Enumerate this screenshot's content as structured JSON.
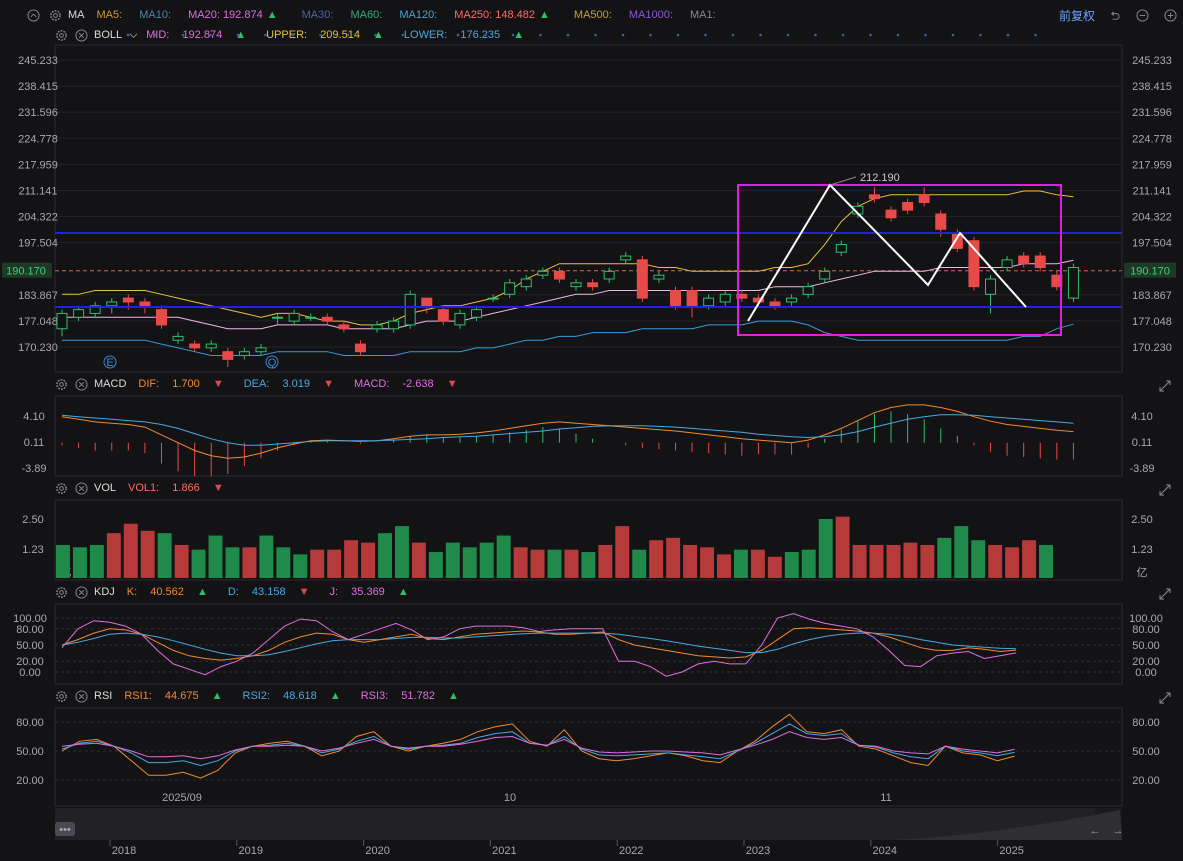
{
  "ma": {
    "name": "MA",
    "items": [
      {
        "label": "MA5:",
        "value": "",
        "color": "#c9963c"
      },
      {
        "label": "MA10:",
        "value": "",
        "color": "#4b86a8"
      },
      {
        "label": "MA20:",
        "value": "192.874",
        "color": "#e06ee0",
        "arrow": "▲"
      },
      {
        "label": "MA30:",
        "value": "",
        "color": "#4a63a8"
      },
      {
        "label": "MA60:",
        "value": "",
        "color": "#3aa87a"
      },
      {
        "label": "MA120:",
        "value": "",
        "color": "#4aa3c8"
      },
      {
        "label": "MA250:",
        "value": "148.482",
        "color": "#ff6a6a",
        "arrow": "▲"
      },
      {
        "label": "MA500:",
        "value": "",
        "color": "#c8a030"
      },
      {
        "label": "MA1000:",
        "value": "",
        "color": "#8a5ad0"
      },
      {
        "label": "MA1:",
        "value": "",
        "color": "#888888"
      }
    ],
    "adjust": "前复权"
  },
  "boll": {
    "name": "BOLL",
    "mid_label": "MID:",
    "mid": "192.874",
    "upper_label": "UPPER:",
    "upper": "209.514",
    "lower_label": "LOWER:",
    "lower": "176.235"
  },
  "macd": {
    "name": "MACD",
    "dif_label": "DIF:",
    "dif": "1.700",
    "dea_label": "DEA:",
    "dea": "3.019",
    "macd_label": "MACD:",
    "macd": "-2.638",
    "ticks": [
      "4.10",
      "0.11",
      "-3.89"
    ]
  },
  "vol": {
    "name": "VOL",
    "vol1_label": "VOL1:",
    "vol1": "1.866",
    "ticks": [
      "2.50",
      "1.23",
      "亿"
    ]
  },
  "kdj": {
    "name": "KDJ",
    "k_label": "K:",
    "k": "40.562",
    "d_label": "D:",
    "d": "43.158",
    "j_label": "J:",
    "j": "35.369",
    "ticks": [
      "100.00",
      "80.00",
      "50.00",
      "20.00",
      "0.00"
    ]
  },
  "rsi": {
    "name": "RSI",
    "rsi1_label": "RSI1:",
    "rsi1": "44.675",
    "rsi2_label": "RSI2:",
    "rsi2": "48.618",
    "rsi3_label": "RSI3:",
    "rsi3": "51.782",
    "ticks": [
      "80.00",
      "50.00",
      "20.00"
    ]
  },
  "price_ticks": [
    "245.233",
    "238.415",
    "231.596",
    "224.778",
    "217.959",
    "211.141",
    "204.322",
    "197.504",
    "190.170",
    "183.867",
    "177.048",
    "170.230"
  ],
  "last_price": "190.170",
  "peak_label": "212.190",
  "date_labels": [
    "2025/09",
    "10",
    "11"
  ],
  "year_labels": [
    "2018",
    "2019",
    "2020",
    "2021",
    "2022",
    "2023",
    "2024",
    "2025"
  ],
  "markers": [
    "E",
    "Q"
  ],
  "chart_data": {
    "type": "candlestick",
    "candles": [
      [
        175,
        179,
        173,
        180
      ],
      [
        178,
        180,
        177,
        181
      ],
      [
        179,
        181,
        178,
        182
      ],
      [
        181,
        182,
        179,
        183
      ],
      [
        183,
        182,
        180,
        184
      ],
      [
        182,
        181,
        179,
        183
      ],
      [
        180,
        176,
        175,
        181
      ],
      [
        172,
        173,
        171,
        174
      ],
      [
        171,
        170,
        169,
        172
      ],
      [
        170,
        171,
        169,
        172
      ],
      [
        169,
        167,
        165,
        170
      ],
      [
        168,
        169,
        167,
        170
      ],
      [
        169,
        170,
        168,
        171
      ],
      [
        178,
        178,
        176,
        179
      ],
      [
        177,
        179,
        176,
        180
      ],
      [
        178,
        178,
        177,
        179
      ],
      [
        178,
        177,
        176,
        179
      ],
      [
        176,
        175,
        174,
        177
      ],
      [
        171,
        169,
        168,
        172
      ],
      [
        175,
        176,
        174,
        177
      ],
      [
        175,
        177,
        174,
        178
      ],
      [
        176,
        184,
        175,
        185
      ],
      [
        183,
        181,
        179,
        183
      ],
      [
        180,
        177,
        176,
        181
      ],
      [
        176,
        179,
        175,
        180
      ],
      [
        178,
        180,
        177,
        181
      ],
      [
        183,
        183,
        182,
        184
      ],
      [
        184,
        187,
        183,
        188
      ],
      [
        186,
        188,
        185,
        189
      ],
      [
        189,
        190,
        188,
        191
      ],
      [
        190,
        188,
        187,
        191
      ],
      [
        186,
        187,
        185,
        188
      ],
      [
        187,
        186,
        185,
        188
      ],
      [
        188,
        190,
        187,
        191
      ],
      [
        193,
        194,
        192,
        195
      ],
      [
        193,
        183,
        182,
        194
      ],
      [
        188,
        189,
        187,
        190
      ],
      [
        185,
        181,
        180,
        186
      ],
      [
        185,
        181,
        178,
        186
      ],
      [
        181,
        183,
        180,
        184
      ],
      [
        182,
        184,
        181,
        185
      ],
      [
        184,
        183,
        182,
        185
      ],
      [
        183,
        182,
        181,
        184
      ],
      [
        182,
        181,
        180,
        183
      ],
      [
        182,
        183,
        181,
        184
      ],
      [
        184,
        186,
        183,
        187
      ],
      [
        188,
        190,
        187,
        191
      ],
      [
        195,
        197,
        194,
        198
      ],
      [
        205,
        207,
        204,
        208
      ],
      [
        210,
        209,
        208,
        212
      ],
      [
        206,
        204,
        203,
        207
      ],
      [
        208,
        206,
        205,
        209
      ],
      [
        210,
        208,
        207,
        212
      ],
      [
        205,
        201,
        199,
        206
      ],
      [
        200,
        196,
        195,
        201
      ],
      [
        198,
        186,
        185,
        199
      ],
      [
        184,
        188,
        179,
        189
      ],
      [
        191,
        193,
        190,
        194
      ],
      [
        194,
        192,
        191,
        195
      ],
      [
        194,
        191,
        190,
        195
      ],
      [
        189,
        186,
        185,
        190
      ],
      [
        183,
        191,
        182,
        192
      ]
    ],
    "boll_upper": [
      184,
      184,
      185,
      185,
      185,
      185,
      184,
      183,
      182,
      181,
      180,
      179,
      178,
      179,
      179,
      178,
      177,
      177,
      176,
      176,
      177,
      179,
      180,
      181,
      181,
      182,
      183,
      185,
      188,
      190,
      192,
      192,
      192,
      192,
      192,
      192,
      191,
      191,
      190,
      190,
      190,
      190,
      190,
      191,
      191,
      192,
      197,
      203,
      207,
      209,
      210,
      210,
      210,
      210,
      210,
      210,
      210,
      210,
      211,
      211,
      210,
      209.5
    ],
    "boll_mid": [
      178,
      178,
      178,
      178,
      178,
      178,
      178,
      178,
      177,
      176,
      175,
      175,
      175,
      176,
      176,
      176,
      176,
      175,
      175,
      175,
      175,
      176,
      177,
      177,
      177,
      178,
      179,
      180,
      181,
      182,
      183,
      184,
      184,
      185,
      185,
      185,
      185,
      185,
      185,
      185,
      185,
      185,
      185,
      186,
      186,
      186,
      187,
      188,
      189,
      190,
      190,
      190,
      190,
      191,
      191,
      191,
      191,
      191,
      192,
      192,
      192,
      192.9
    ],
    "boll_lower": [
      172,
      172,
      172,
      172,
      172,
      172,
      171,
      170,
      169,
      168,
      168,
      168,
      168,
      169,
      169,
      169,
      169,
      168,
      168,
      168,
      168,
      169,
      169,
      169,
      169,
      170,
      170,
      171,
      172,
      172,
      173,
      173,
      174,
      174,
      174,
      175,
      175,
      175,
      175,
      176,
      176,
      176,
      177,
      177,
      177,
      176,
      174,
      173,
      172,
      172,
      172,
      172,
      172,
      172,
      172,
      172,
      172,
      172,
      173,
      173,
      175,
      176.2
    ],
    "macd_dif": [
      4.0,
      3.6,
      3.2,
      3.0,
      2.8,
      2.4,
      1.2,
      0.0,
      -1.2,
      -2.0,
      -2.4,
      -2.2,
      -1.6,
      -0.8,
      -0.2,
      0.3,
      0.4,
      0.3,
      0.2,
      0.3,
      0.6,
      1.0,
      1.2,
      1.2,
      1.3,
      1.5,
      1.8,
      2.2,
      2.6,
      3.0,
      3.2,
      3.0,
      2.8,
      2.6,
      2.4,
      2.2,
      2.0,
      1.8,
      1.5,
      1.2,
      0.9,
      0.6,
      0.4,
      0.2,
      0.0,
      0.4,
      1.2,
      2.2,
      3.4,
      4.6,
      5.4,
      5.8,
      5.8,
      5.4,
      4.8,
      4.0,
      3.3,
      2.8,
      2.5,
      2.2,
      1.9,
      1.7
    ],
    "macd_dea": [
      4.2,
      4.0,
      3.8,
      3.6,
      3.4,
      3.2,
      2.8,
      2.2,
      1.4,
      0.6,
      0.0,
      -0.4,
      -0.4,
      -0.2,
      0.0,
      0.2,
      0.3,
      0.3,
      0.3,
      0.3,
      0.4,
      0.5,
      0.6,
      0.8,
      0.9,
      1.0,
      1.2,
      1.4,
      1.6,
      1.8,
      2.1,
      2.3,
      2.5,
      2.6,
      2.6,
      2.6,
      2.5,
      2.4,
      2.2,
      2.0,
      1.8,
      1.6,
      1.3,
      1.1,
      0.9,
      0.8,
      0.9,
      1.2,
      1.7,
      2.4,
      3.0,
      3.6,
      4.0,
      4.3,
      4.3,
      4.2,
      4.0,
      3.8,
      3.6,
      3.4,
      3.2,
      3.0
    ],
    "volumes": [
      1.4,
      1.3,
      1.4,
      1.9,
      2.3,
      2.0,
      1.9,
      1.4,
      1.2,
      1.8,
      1.3,
      1.3,
      1.8,
      1.3,
      1.0,
      1.2,
      1.2,
      1.6,
      1.5,
      1.9,
      2.2,
      1.5,
      1.1,
      1.5,
      1.3,
      1.5,
      1.8,
      1.3,
      1.2,
      1.2,
      1.2,
      1.1,
      1.4,
      2.2,
      1.2,
      1.6,
      1.7,
      1.4,
      1.3,
      1.0,
      1.2,
      1.2,
      0.9,
      1.1,
      1.2,
      2.5,
      2.6,
      1.4,
      1.4,
      1.4,
      1.5,
      1.4,
      1.7,
      2.2,
      1.6,
      1.4,
      1.3,
      1.6,
      1.4
    ],
    "vol_up": [
      1,
      1,
      1,
      0,
      0,
      0,
      1,
      0,
      1,
      1,
      1,
      0,
      1,
      1,
      1,
      0,
      0,
      0,
      0,
      1,
      1,
      0,
      1,
      1,
      1,
      1,
      1,
      0,
      0,
      1,
      0,
      1,
      0,
      0,
      1,
      0,
      0,
      0,
      0,
      0,
      1,
      0,
      0,
      1,
      1,
      1,
      0,
      0,
      0,
      0,
      0,
      0,
      1,
      1,
      1,
      0,
      0,
      0,
      1
    ],
    "kdj_k": [
      50,
      60,
      72,
      80,
      78,
      70,
      55,
      40,
      30,
      25,
      22,
      25,
      30,
      40,
      55,
      65,
      72,
      70,
      60,
      55,
      60,
      65,
      70,
      62,
      60,
      65,
      70,
      72,
      74,
      76,
      74,
      70,
      70,
      72,
      74,
      60,
      50,
      45,
      40,
      35,
      30,
      28,
      26,
      28,
      40,
      60,
      80,
      82,
      80,
      78,
      76,
      72,
      65,
      55,
      45,
      40,
      40,
      45,
      42,
      38,
      40.5
    ],
    "kdj_d": [
      50,
      55,
      62,
      70,
      72,
      70,
      65,
      58,
      50,
      42,
      35,
      30,
      30,
      32,
      38,
      45,
      52,
      58,
      60,
      60,
      60,
      62,
      64,
      64,
      63,
      63,
      65,
      67,
      69,
      71,
      72,
      72,
      72,
      72,
      72,
      70,
      66,
      62,
      58,
      53,
      48,
      44,
      40,
      36,
      36,
      42,
      52,
      60,
      66,
      70,
      72,
      72,
      70,
      66,
      60,
      55,
      50,
      48,
      46,
      44,
      43.2
    ],
    "kdj_j": [
      45,
      80,
      95,
      92,
      85,
      70,
      40,
      15,
      5,
      -5,
      10,
      20,
      35,
      60,
      85,
      98,
      95,
      75,
      60,
      70,
      80,
      90,
      78,
      60,
      65,
      80,
      85,
      85,
      85,
      82,
      75,
      78,
      80,
      80,
      80,
      20,
      20,
      10,
      -8,
      0,
      15,
      20,
      15,
      15,
      50,
      100,
      108,
      98,
      90,
      85,
      80,
      65,
      40,
      12,
      10,
      30,
      35,
      38,
      25,
      30,
      35.4
    ],
    "rsi1": [
      50,
      60,
      62,
      55,
      40,
      25,
      25,
      28,
      22,
      30,
      48,
      55,
      58,
      60,
      55,
      45,
      50,
      65,
      70,
      55,
      50,
      55,
      58,
      62,
      70,
      75,
      78,
      60,
      55,
      72,
      50,
      42,
      40,
      42,
      45,
      48,
      45,
      40,
      38,
      50,
      60,
      75,
      88,
      70,
      68,
      72,
      55,
      52,
      45,
      38,
      35,
      55,
      48,
      46,
      40,
      44.7
    ],
    "rsi2": [
      52,
      58,
      60,
      55,
      48,
      38,
      38,
      40,
      35,
      40,
      50,
      55,
      56,
      58,
      55,
      48,
      52,
      60,
      65,
      55,
      52,
      55,
      56,
      58,
      64,
      68,
      70,
      58,
      56,
      65,
      52,
      46,
      45,
      46,
      47,
      48,
      46,
      44,
      42,
      50,
      58,
      68,
      78,
      68,
      66,
      68,
      56,
      54,
      48,
      44,
      42,
      55,
      50,
      48,
      45,
      48.6
    ],
    "rsi3": [
      55,
      57,
      58,
      55,
      50,
      44,
      44,
      45,
      42,
      45,
      51,
      55,
      55,
      56,
      55,
      50,
      53,
      58,
      62,
      55,
      53,
      55,
      55,
      57,
      60,
      64,
      65,
      58,
      56,
      62,
      53,
      49,
      48,
      49,
      50,
      50,
      49,
      48,
      46,
      51,
      56,
      62,
      70,
      64,
      62,
      64,
      56,
      55,
      50,
      48,
      47,
      55,
      52,
      50,
      48,
      51.8
    ]
  }
}
